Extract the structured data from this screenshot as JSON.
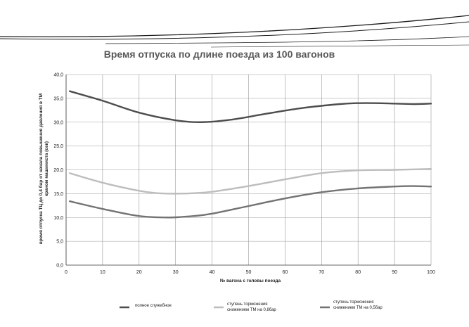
{
  "chart_data": {
    "type": "line",
    "title": "Время отпуска по длине  поезда из 100 вагонов",
    "xlabel": "№ вагона с головы поезда",
    "ylabel_lines": [
      "время отпуска ТЦ до 0,4 бар от начала повышения давления в ТМ",
      "краном машиниста (сек)"
    ],
    "xlim": [
      0,
      100
    ],
    "ylim": [
      0,
      40
    ],
    "x_ticks": [
      "0",
      "10",
      "20",
      "30",
      "40",
      "50",
      "60",
      "70",
      "80",
      "90",
      "100"
    ],
    "y_ticks": [
      "0,0",
      "5,0",
      "10,0",
      "15,0",
      "20,0",
      "25,0",
      "30,0",
      "35,0",
      "40,0"
    ],
    "grid": true,
    "legend_position": "bottom",
    "series": [
      {
        "name": "полное служебное",
        "color": "#4d4d4d",
        "x": [
          1,
          10,
          20,
          30,
          37,
          45,
          55,
          65,
          75,
          80,
          85,
          90,
          95,
          100
        ],
        "y": [
          36.5,
          34.5,
          32.0,
          30.4,
          30.0,
          30.5,
          31.8,
          33.0,
          33.8,
          34.0,
          34.0,
          33.9,
          33.8,
          33.9
        ]
      },
      {
        "name_lines": [
          "ступень торможения",
          "снижением ТМ на 0,8бар"
        ],
        "color": "#bdbdbd",
        "x": [
          1,
          10,
          20,
          25,
          30,
          35,
          40,
          50,
          60,
          70,
          80,
          90,
          100
        ],
        "y": [
          19.3,
          17.3,
          15.6,
          15.1,
          15.0,
          15.1,
          15.4,
          16.6,
          18.0,
          19.3,
          19.9,
          20.0,
          20.2
        ]
      },
      {
        "name_lines": [
          "ступень торможения",
          "снижением ТМ на 0,5бар"
        ],
        "color": "#737373",
        "x": [
          1,
          10,
          20,
          28,
          35,
          40,
          50,
          60,
          70,
          80,
          90,
          95,
          100
        ],
        "y": [
          13.4,
          11.8,
          10.3,
          10.0,
          10.3,
          10.8,
          12.4,
          14.0,
          15.3,
          16.1,
          16.5,
          16.6,
          16.5
        ]
      }
    ]
  }
}
